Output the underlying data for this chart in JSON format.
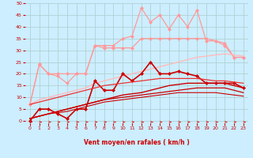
{
  "x": [
    0,
    1,
    2,
    3,
    4,
    5,
    6,
    7,
    8,
    9,
    10,
    11,
    12,
    13,
    14,
    15,
    16,
    17,
    18,
    19,
    20,
    21,
    22,
    23
  ],
  "background_color": "#cceeff",
  "grid_color": "#aacccc",
  "xlabel": "Vent moyen/en rafales ( km/h )",
  "xlabel_color": "#cc0000",
  "tick_color": "#cc0000",
  "arrow_color": "#dd2222",
  "ylim": [
    -1,
    50
  ],
  "xlim": [
    -0.5,
    23.5
  ],
  "yticks": [
    0,
    5,
    10,
    15,
    20,
    25,
    30,
    35,
    40,
    45,
    50
  ],
  "series": [
    {
      "color": "#ff9999",
      "linewidth": 0.9,
      "marker": "D",
      "markersize": 2.0,
      "y": [
        7,
        24,
        20,
        19,
        16,
        20,
        20,
        32,
        31,
        31,
        31,
        31,
        35,
        35,
        35,
        35,
        35,
        35,
        35,
        35,
        34,
        33,
        27,
        27
      ]
    },
    {
      "color": "#ff9999",
      "linewidth": 0.9,
      "marker": "D",
      "markersize": 2.0,
      "y": [
        7,
        24,
        20,
        20,
        20,
        20,
        20,
        32,
        32,
        32,
        35,
        36,
        48,
        42,
        45,
        39,
        45,
        40,
        47,
        34,
        34,
        32,
        27,
        27
      ]
    },
    {
      "color": "#ffbbbb",
      "linewidth": 1.0,
      "marker": null,
      "markersize": 0,
      "y": [
        7,
        9,
        10,
        11,
        12,
        13,
        14,
        16,
        17,
        18,
        19,
        20,
        21,
        22,
        23,
        24,
        25,
        26,
        27,
        27.5,
        28,
        28.5,
        28,
        27.5
      ]
    },
    {
      "color": "#cc0000",
      "linewidth": 1.2,
      "marker": "D",
      "markersize": 2.0,
      "y": [
        0,
        5,
        5,
        3,
        1,
        5,
        5,
        17,
        13,
        13,
        20,
        17,
        20,
        25,
        20,
        20,
        21,
        20,
        19,
        16,
        16,
        16,
        16,
        14
      ]
    },
    {
      "color": "#cc0000",
      "linewidth": 1.0,
      "marker": null,
      "markersize": 0,
      "y": [
        1,
        2,
        3,
        4,
        5,
        6,
        7,
        8,
        9,
        10,
        11,
        11.5,
        12,
        13,
        14,
        15,
        15.5,
        16,
        16,
        16,
        16,
        16,
        15,
        14
      ]
    },
    {
      "color": "#cc0000",
      "linewidth": 0.9,
      "marker": null,
      "markersize": 0,
      "y": [
        1,
        2,
        3,
        4,
        5,
        6,
        7,
        8,
        9,
        9.5,
        10,
        10.5,
        11,
        11.5,
        12,
        12.5,
        13,
        13.5,
        14,
        14,
        14,
        14,
        13,
        12
      ]
    },
    {
      "color": "#cc0000",
      "linewidth": 0.8,
      "marker": null,
      "markersize": 0,
      "y": [
        1,
        2,
        3,
        3.5,
        4,
        5,
        6,
        7,
        8,
        8.5,
        9,
        9.5,
        10,
        10.5,
        11,
        11.5,
        12,
        12,
        12,
        12,
        12,
        11.5,
        11,
        10.5
      ]
    },
    {
      "color": "#ee3333",
      "linewidth": 0.9,
      "marker": null,
      "markersize": 0,
      "y": [
        7,
        8,
        9,
        10,
        11,
        12,
        13,
        14,
        15,
        15.5,
        16,
        16.5,
        17,
        17.5,
        18,
        18,
        18,
        18,
        18,
        17.5,
        17,
        17,
        16.5,
        16
      ]
    }
  ]
}
